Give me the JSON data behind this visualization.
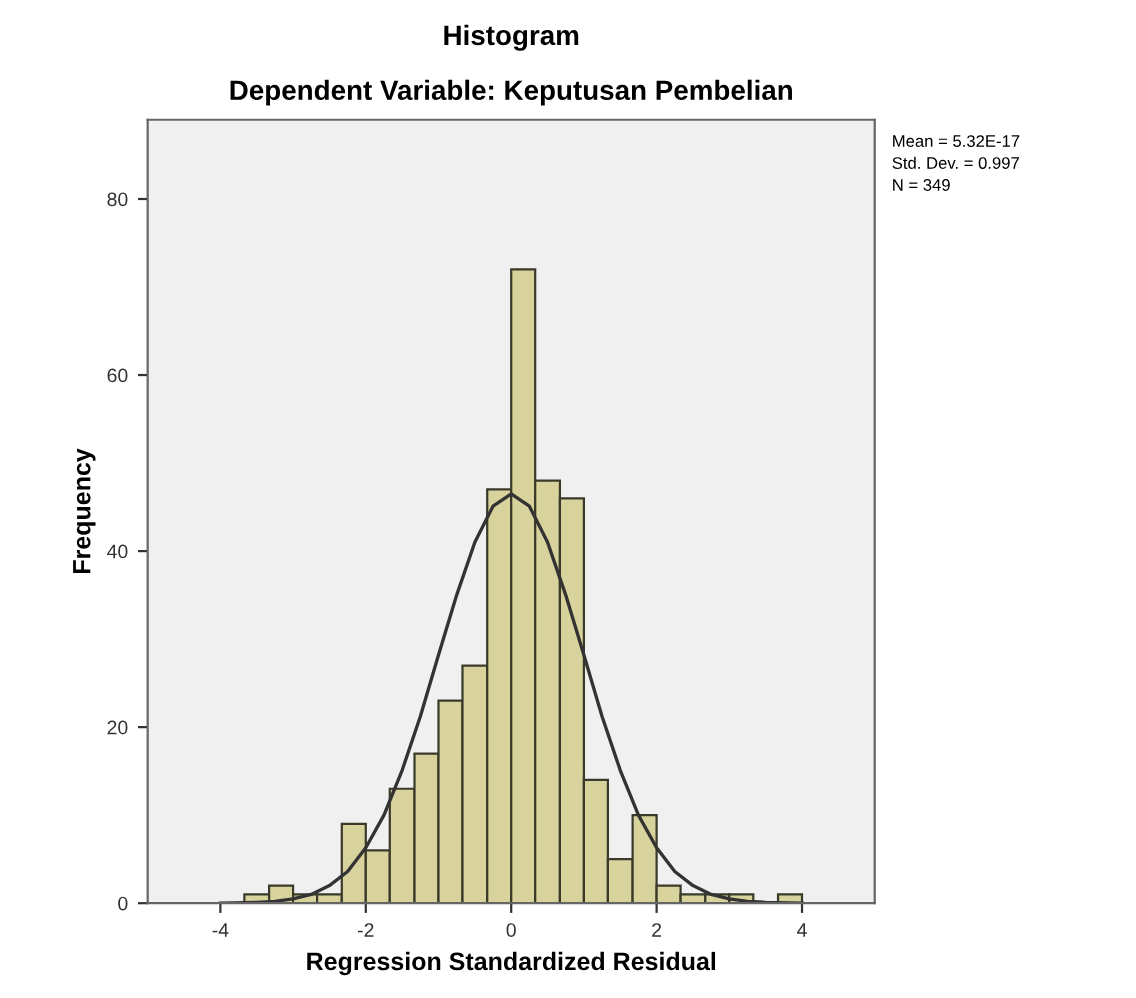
{
  "chart_data": {
    "type": "histogram",
    "title": "Histogram",
    "subtitle": "Dependent Variable: Keputusan Pembelian",
    "xlabel": "Regression Standardized Residual",
    "ylabel": "Frequency",
    "bins": [
      -3.67,
      -3.33,
      -3,
      -2.67,
      -2.33,
      -2,
      -1.67,
      -1.33,
      -1,
      -0.67,
      -0.33,
      0,
      0.33,
      0.67,
      1,
      1.33,
      1.67,
      2,
      2.33,
      2.67,
      3,
      3.33,
      3.67,
      4
    ],
    "values": [
      1,
      2,
      1,
      1,
      9,
      6,
      13,
      17,
      23,
      27,
      47,
      72,
      48,
      46,
      14,
      5,
      10,
      2,
      1,
      1,
      1,
      0,
      1
    ],
    "color": "#d8d39c",
    "series": [
      {
        "type": "line",
        "color": "#333333",
        "x": [
          -4,
          -3.5,
          -3.25,
          -3,
          -2.75,
          -2.5,
          -2.25,
          -2,
          -1.75,
          -1.5,
          -1.25,
          -1,
          -0.75,
          -0.5,
          -0.25,
          0,
          0.25,
          0.5,
          0.75,
          1,
          1.25,
          1.5,
          1.75,
          2,
          2.25,
          2.5,
          2.75,
          3,
          3.25,
          3.5,
          4
        ],
        "values": [
          0,
          0.1,
          0.2,
          0.5,
          1,
          2,
          3.6,
          6.3,
          10,
          15.1,
          21.2,
          28.2,
          35,
          41,
          45.1,
          46.5,
          45.1,
          41,
          35,
          28.2,
          21.2,
          15.1,
          10,
          6.3,
          3.6,
          2,
          1,
          0.5,
          0.2,
          0.1,
          0
        ]
      }
    ],
    "xlim": [
      -5,
      5
    ],
    "ylim": [
      0,
      89
    ],
    "xticks": [
      -4,
      -2,
      0,
      2,
      4
    ],
    "yticks": [
      0,
      20,
      40,
      60,
      80
    ],
    "grid": false,
    "annotations": [
      "Mean = 5.32E-17",
      "Std. Dev. = 0.997",
      "N = 349"
    ]
  }
}
